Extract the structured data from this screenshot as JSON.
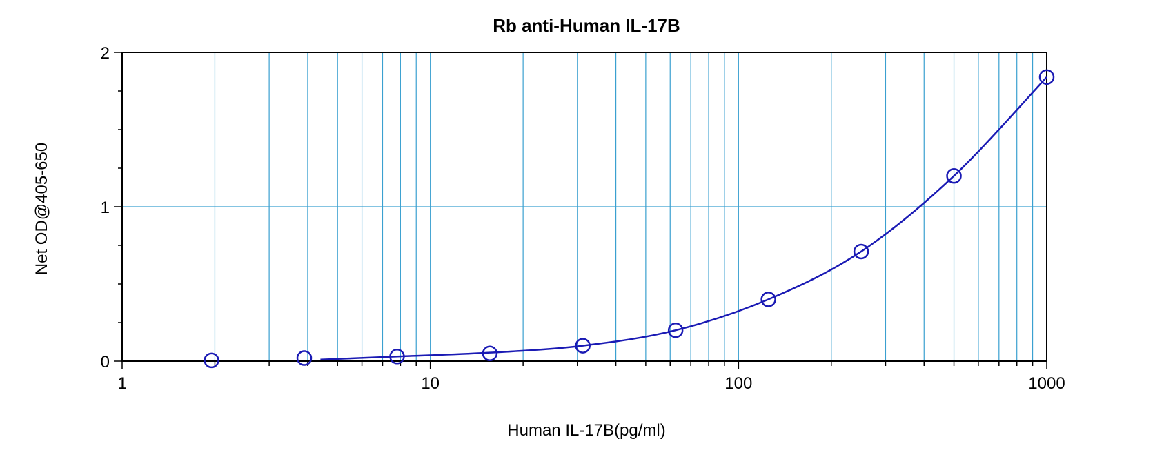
{
  "chart_data": {
    "type": "scatter",
    "title": "Rb anti-Human IL-17B",
    "xlabel": "Human IL-17B(pg/ml)",
    "ylabel": "Net OD@405-650",
    "x_scale": "log",
    "xlim": [
      1,
      1000
    ],
    "ylim": [
      0,
      2
    ],
    "x_ticks": [
      1,
      10,
      100,
      1000
    ],
    "x_tick_labels": [
      "1",
      "10",
      "100",
      "1000"
    ],
    "y_ticks": [
      0,
      1,
      2
    ],
    "y_tick_labels": [
      "0",
      "1",
      "2"
    ],
    "grid": true,
    "series": [
      {
        "x": [
          1.95,
          3.9,
          7.8,
          15.6,
          31.25,
          62.5,
          125,
          250,
          500,
          1000
        ],
        "y": [
          0.005,
          0.02,
          0.03,
          0.05,
          0.1,
          0.2,
          0.4,
          0.71,
          1.2,
          1.84
        ]
      }
    ],
    "fit_curve": {
      "x": [
        4.4,
        7.8,
        15.6,
        31.25,
        62.5,
        125,
        250,
        500,
        1000
      ],
      "y": [
        0.01,
        0.03,
        0.055,
        0.1,
        0.2,
        0.4,
        0.71,
        1.2,
        1.84
      ]
    },
    "colors": {
      "marker": "#1a1ab4",
      "curve": "#1a1ab4",
      "grid": "#3aa0d0",
      "axes": "#000000"
    }
  }
}
